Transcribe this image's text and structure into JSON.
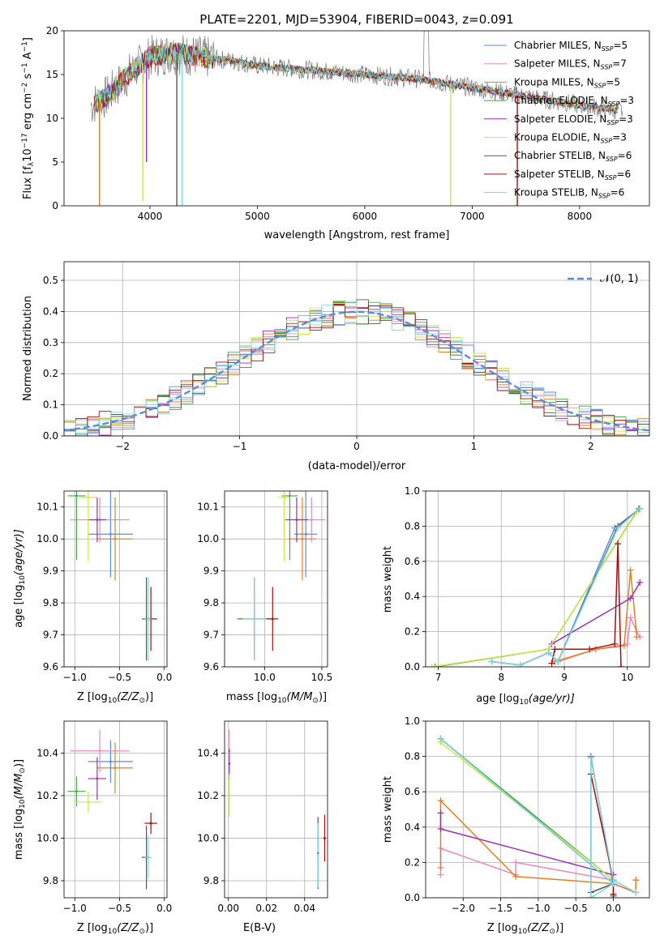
{
  "colors": {
    "chabrier_miles": "#5a8ce0",
    "salpeter_miles": "#e889c0",
    "kroupa_miles": "#e57f24",
    "chabrier_elodie": "#4aa34a",
    "salpeter_elodie": "#9c2fb5",
    "kroupa_elodie": "#c9e84a",
    "chabrier_stelib": "#555555",
    "salpeter_stelib": "#a01010",
    "kroupa_stelib": "#7fd8de",
    "gauss": "#5a8ce0"
  },
  "legend": [
    {
      "key": "chabrier_miles",
      "label": "Chabrier MILES, N",
      "sub": "SSP",
      "n": "=5"
    },
    {
      "key": "salpeter_miles",
      "label": "Salpeter MILES, N",
      "sub": "SSP",
      "n": "=7"
    },
    {
      "key": "kroupa_miles",
      "label": "Kroupa MILES, N",
      "sub": "SSP",
      "n": "=5"
    },
    {
      "key": "chabrier_elodie",
      "label": "Chabrier ELODIE, N",
      "sub": "SSP",
      "n": "=3"
    },
    {
      "key": "salpeter_elodie",
      "label": "Salpeter ELODIE, N",
      "sub": "SSP",
      "n": "=3"
    },
    {
      "key": "kroupa_elodie",
      "label": "Kroupa ELODIE, N",
      "sub": "SSP",
      "n": "=3"
    },
    {
      "key": "chabrier_stelib",
      "label": "Chabrier STELIB, N",
      "sub": "SSP",
      "n": "=6"
    },
    {
      "key": "salpeter_stelib",
      "label": "Salpeter STELIB, N",
      "sub": "SSP",
      "n": "=6"
    },
    {
      "key": "kroupa_stelib",
      "label": "Kroupa STELIB, N",
      "sub": "SSP",
      "n": "=6"
    }
  ],
  "chart_data": [
    {
      "id": "spectrum",
      "type": "line",
      "title": "PLATE=2201, MJD=53904, FIBERID=0043, z=0.091",
      "xlabel": "wavelength [Angstrom, rest frame]",
      "ylabel": "Flux [f",
      "ylabel_sub": "λ",
      "ylabel_rest": "10",
      "ylabel_sup": "−17",
      "ylabel_tail": " erg cm",
      "ylabel_sup2": "−2",
      "ylabel_tail2": " s",
      "ylabel_sup3": "−1",
      "ylabel_tail3": " A",
      "ylabel_sup4": "−1",
      "ylabel_end": "]",
      "xlim": [
        3200,
        8650
      ],
      "ylim": [
        0,
        20
      ],
      "xticks": [
        4000,
        5000,
        6000,
        7000,
        8000
      ],
      "yticks": [
        0,
        5,
        10,
        15,
        20
      ],
      "continuum": [
        [
          3450,
          11.5
        ],
        [
          3600,
          12.5
        ],
        [
          3800,
          15
        ],
        [
          4000,
          17
        ],
        [
          4200,
          17.5
        ],
        [
          4500,
          17
        ],
        [
          4800,
          16.5
        ],
        [
          5000,
          16
        ],
        [
          5500,
          15.5
        ],
        [
          6000,
          15
        ],
        [
          6500,
          14.5
        ],
        [
          7000,
          13.5
        ],
        [
          7500,
          12.5
        ],
        [
          8000,
          11.5
        ],
        [
          8400,
          10.8
        ]
      ],
      "dips": [
        [
          3530,
          0.0
        ],
        [
          3933,
          0.5
        ],
        [
          3968,
          5
        ],
        [
          4250,
          0
        ],
        [
          4300,
          0
        ],
        [
          6800,
          0
        ],
        [
          7420,
          0
        ]
      ]
    },
    {
      "id": "residuals",
      "type": "histogram",
      "xlabel": "(data-model)/error",
      "ylabel": "Normed distribution",
      "legend": "𝒩(0, 1)",
      "xlim": [
        -2.5,
        2.5
      ],
      "ylim": [
        0,
        0.56
      ],
      "xticks": [
        -2,
        -1,
        0,
        1,
        2
      ],
      "xtick_labels": [
        "−2",
        "−1",
        "0",
        "1",
        "2"
      ],
      "yticks": [
        0.0,
        0.1,
        0.2,
        0.3,
        0.4,
        0.5
      ],
      "ytick_labels": [
        "0.0",
        "0.1",
        "0.2",
        "0.3",
        "0.4",
        "0.5"
      ]
    },
    {
      "id": "age_vs_z",
      "type": "errorbar",
      "xlabel": "Z [log",
      "xlabel_sub": "10",
      "xlabel_rest": "(Z/Z",
      "xlabel_sub2": "⊙",
      "xlabel_end": ")]",
      "ylabel": "age  [log",
      "ylabel_sub": "10",
      "ylabel_rest": "(age/yr)]",
      "xlim": [
        -1.12,
        0.03
      ],
      "ylim": [
        9.6,
        10.15
      ],
      "xticks": [
        -1.0,
        -0.5,
        0.0
      ],
      "xtick_labels": [
        "−1.0",
        "−0.5",
        "0.0"
      ],
      "yticks": [
        9.6,
        9.7,
        9.8,
        9.9,
        10.0,
        10.1
      ],
      "ytick_labels": [
        "9.6",
        "9.7",
        "9.8",
        "9.9",
        "10.0",
        "10.1"
      ],
      "points": [
        {
          "key": "chabrier_miles",
          "x": -0.6,
          "y": 10.015,
          "xerr": 0.25,
          "yerr": 0.135
        },
        {
          "key": "salpeter_miles",
          "x": -0.72,
          "y": 10.06,
          "xerr": 0.33,
          "yerr": 0.07
        },
        {
          "key": "kroupa_miles",
          "x": -0.55,
          "y": 10.0,
          "xerr": 0.2,
          "yerr": 0.13
        },
        {
          "key": "chabrier_elodie",
          "x": -0.98,
          "y": 10.135,
          "xerr": 0.1,
          "yerr": 0.2
        },
        {
          "key": "salpeter_elodie",
          "x": -0.75,
          "y": 10.06,
          "xerr": 0.1,
          "yerr": 0.07
        },
        {
          "key": "kroupa_elodie",
          "x": -0.85,
          "y": 10.13,
          "xerr": 0.1,
          "yerr": 0.2
        },
        {
          "key": "chabrier_stelib",
          "x": -0.2,
          "y": 9.75,
          "xerr": 0.05,
          "yerr": 0.13
        },
        {
          "key": "salpeter_stelib",
          "x": -0.15,
          "y": 9.75,
          "xerr": 0.07,
          "yerr": 0.1
        },
        {
          "key": "kroupa_stelib",
          "x": -0.18,
          "y": 9.75,
          "xerr": 0.04,
          "yerr": 0.13
        }
      ]
    },
    {
      "id": "age_vs_mass",
      "type": "errorbar",
      "xlabel": "mass [log",
      "xlabel_sub": "10",
      "xlabel_rest": "(M/M",
      "xlabel_sub2": "⊙",
      "xlabel_end": ")]",
      "xlim": [
        9.65,
        10.55
      ],
      "ylim": [
        9.6,
        10.15
      ],
      "xticks": [
        10.0,
        10.5
      ],
      "xtick_labels": [
        "10.0",
        "10.5"
      ],
      "yticks": [
        9.6,
        9.7,
        9.8,
        9.9,
        10.0,
        10.1
      ],
      "ytick_labels": [
        "9.6",
        "9.7",
        "9.8",
        "9.9",
        "10.0",
        "10.1"
      ],
      "points": [
        {
          "key": "chabrier_miles",
          "x": 10.36,
          "y": 10.015,
          "xerr": 0.1,
          "yerr": 0.135
        },
        {
          "key": "salpeter_miles",
          "x": 10.41,
          "y": 10.06,
          "xerr": 0.12,
          "yerr": 0.07
        },
        {
          "key": "kroupa_miles",
          "x": 10.33,
          "y": 10.0,
          "xerr": 0.12,
          "yerr": 0.13
        },
        {
          "key": "chabrier_elodie",
          "x": 10.22,
          "y": 10.135,
          "xerr": 0.07,
          "yerr": 0.2
        },
        {
          "key": "salpeter_elodie",
          "x": 10.28,
          "y": 10.06,
          "xerr": 0.1,
          "yerr": 0.07
        },
        {
          "key": "kroupa_elodie",
          "x": 10.17,
          "y": 10.13,
          "xerr": 0.05,
          "yerr": 0.2
        },
        {
          "key": "chabrier_stelib",
          "x": 9.91,
          "y": 9.75,
          "xerr": 0.15,
          "yerr": 0.13
        },
        {
          "key": "salpeter_stelib",
          "x": 10.07,
          "y": 9.75,
          "xerr": 0.05,
          "yerr": 0.1
        },
        {
          "key": "kroupa_stelib",
          "x": 9.91,
          "y": 9.75,
          "xerr": 0.1,
          "yerr": 0.13
        }
      ]
    },
    {
      "id": "weight_vs_age",
      "type": "line",
      "xlabel": "age  [log",
      "xlabel_sub": "10",
      "xlabel_rest": "(age/yr)]",
      "ylabel": "mass weight",
      "xlim": [
        6.8,
        10.35
      ],
      "ylim": [
        0,
        1.0
      ],
      "xticks": [
        7,
        8,
        9,
        10
      ],
      "xtick_labels": [
        "7",
        "8",
        "9",
        "10"
      ],
      "yticks": [
        0.0,
        0.2,
        0.4,
        0.6,
        0.8,
        1.0
      ],
      "ytick_labels": [
        "0.0",
        "0.2",
        "0.4",
        "0.6",
        "0.8",
        "1.0"
      ],
      "series": [
        {
          "key": "chabrier_miles",
          "x": [
            7.85,
            8.3,
            8.75,
            8.9,
            9.8,
            10.2
          ],
          "y": [
            0.03,
            0.01,
            0.08,
            0.03,
            0.79,
            0.9
          ]
        },
        {
          "key": "salpeter_miles",
          "x": [
            8.9,
            9.5,
            10.0,
            10.05,
            10.15,
            10.2
          ],
          "y": [
            0.03,
            0.1,
            0.13,
            0.28,
            0.2,
            0.17
          ]
        },
        {
          "key": "kroupa_miles",
          "x": [
            8.85,
            9.5,
            9.95,
            10.05,
            10.15
          ],
          "y": [
            0.03,
            0.1,
            0.12,
            0.55,
            0.17
          ]
        },
        {
          "key": "chabrier_elodie",
          "x": [
            6.95,
            8.75,
            10.18
          ],
          "y": [
            0.0,
            0.1,
            0.9
          ]
        },
        {
          "key": "salpeter_elodie",
          "x": [
            8.8,
            10.05,
            10.2
          ],
          "y": [
            0.13,
            0.39,
            0.48
          ]
        },
        {
          "key": "kroupa_elodie",
          "x": [
            6.9,
            8.75,
            10.15
          ],
          "y": [
            0.0,
            0.1,
            0.88
          ]
        },
        {
          "key": "chabrier_stelib",
          "x": [
            7.85,
            8.3,
            8.75,
            8.9,
            9.85,
            10.2
          ],
          "y": [
            0.03,
            0.01,
            0.08,
            0.03,
            0.8,
            0.9
          ]
        },
        {
          "key": "salpeter_stelib",
          "x": [
            8.8,
            8.85,
            9.4,
            9.8,
            9.85,
            9.9
          ],
          "y": [
            0.02,
            0.1,
            0.1,
            0.13,
            0.7,
            0.0
          ]
        },
        {
          "key": "kroupa_stelib",
          "x": [
            7.85,
            8.3,
            8.75,
            8.9,
            9.85,
            10.2
          ],
          "y": [
            0.03,
            0.01,
            0.08,
            0.03,
            0.79,
            0.9
          ]
        }
      ]
    },
    {
      "id": "mass_vs_z",
      "type": "errorbar",
      "xlabel": "Z [log",
      "xlabel_sub": "10",
      "xlabel_rest": "(Z/Z",
      "xlabel_sub2": "⊙",
      "xlabel_end": ")]",
      "ylabel": "mass [log",
      "ylabel_sub": "10",
      "ylabel_rest": "(M/M",
      "ylabel_sub2": "⊙",
      "ylabel_end": ")]",
      "xlim": [
        -1.12,
        0.03
      ],
      "ylim": [
        9.72,
        10.55
      ],
      "xticks": [
        -1.0,
        -0.5,
        0.0
      ],
      "xtick_labels": [
        "−1.0",
        "−0.5",
        "0.0"
      ],
      "yticks": [
        9.8,
        10.0,
        10.2,
        10.4
      ],
      "ytick_labels": [
        "9.8",
        "10.0",
        "10.2",
        "10.4"
      ],
      "points": [
        {
          "key": "chabrier_miles",
          "x": -0.6,
          "y": 10.36,
          "xerr": 0.25,
          "yerr": 0.1
        },
        {
          "key": "salpeter_miles",
          "x": -0.72,
          "y": 10.41,
          "xerr": 0.33,
          "yerr": 0.1
        },
        {
          "key": "kroupa_miles",
          "x": -0.55,
          "y": 10.33,
          "xerr": 0.2,
          "yerr": 0.12
        },
        {
          "key": "chabrier_elodie",
          "x": -0.98,
          "y": 10.22,
          "xerr": 0.1,
          "yerr": 0.07
        },
        {
          "key": "salpeter_elodie",
          "x": -0.75,
          "y": 10.28,
          "xerr": 0.1,
          "yerr": 0.1
        },
        {
          "key": "kroupa_elodie",
          "x": -0.85,
          "y": 10.17,
          "xerr": 0.15,
          "yerr": 0.05
        },
        {
          "key": "chabrier_stelib",
          "x": -0.2,
          "y": 9.91,
          "xerr": 0.05,
          "yerr": 0.15
        },
        {
          "key": "salpeter_stelib",
          "x": -0.15,
          "y": 10.07,
          "xerr": 0.07,
          "yerr": 0.05
        },
        {
          "key": "kroupa_stelib",
          "x": -0.18,
          "y": 9.91,
          "xerr": 0.04,
          "yerr": 0.1
        }
      ]
    },
    {
      "id": "mass_vs_ebv",
      "type": "errorbar",
      "xlabel": "E(B-V)",
      "xlim": [
        -0.002,
        0.052
      ],
      "ylim": [
        9.72,
        10.55
      ],
      "xticks": [
        0.0,
        0.02,
        0.04
      ],
      "xtick_labels": [
        "0.00",
        "0.02",
        "0.04"
      ],
      "yticks": [
        9.8,
        10.0,
        10.2,
        10.4
      ],
      "ytick_labels": [
        "9.8",
        "10.0",
        "10.2",
        "10.4"
      ],
      "points": [
        {
          "key": "salpeter_miles",
          "x": 0.0005,
          "y": 10.41,
          "xerr": 0,
          "yerr": 0.1
        },
        {
          "key": "salpeter_elodie",
          "x": 0.0005,
          "y": 10.35,
          "xerr": 0,
          "yerr": 0.07
        },
        {
          "key": "kroupa_elodie",
          "x": 0.0005,
          "y": 10.2,
          "xerr": 0,
          "yerr": 0.1
        },
        {
          "key": "chabrier_stelib",
          "x": 0.047,
          "y": 9.93,
          "xerr": 0,
          "yerr": 0.17
        },
        {
          "key": "kroupa_stelib",
          "x": 0.047,
          "y": 9.92,
          "xerr": 0,
          "yerr": 0.15
        },
        {
          "key": "salpeter_stelib",
          "x": 0.0505,
          "y": 10.0,
          "xerr": 0,
          "yerr": 0.11
        }
      ]
    },
    {
      "id": "weight_vs_z",
      "type": "line",
      "xlabel": "Z [log",
      "xlabel_sub": "10",
      "xlabel_rest": "(Z/Z",
      "xlabel_sub2": "⊙",
      "xlabel_end": ")]",
      "ylabel": "mass weight",
      "xlim": [
        -2.5,
        0.48
      ],
      "ylim": [
        0,
        1.0
      ],
      "xticks": [
        -2.0,
        -1.5,
        -1.0,
        -0.5,
        0.0
      ],
      "xtick_labels": [
        "−2.0",
        "−1.5",
        "−1.0",
        "−0.5",
        "0.0"
      ],
      "yticks": [
        0.0,
        0.2,
        0.4,
        0.6,
        0.8,
        1.0
      ],
      "ytick_labels": [
        "0.0",
        "0.2",
        "0.4",
        "0.6",
        "0.8",
        "1.0"
      ],
      "series": [
        {
          "key": "chabrier_miles",
          "x": [
            -2.3,
            0.0,
            0.3,
            0.3
          ],
          "y": [
            0.9,
            0.08,
            0.03,
            0.1
          ]
        },
        {
          "key": "salpeter_miles",
          "x": [
            -2.3,
            -2.3,
            -1.3,
            -1.3,
            0.0,
            0.3
          ],
          "y": [
            0.13,
            0.28,
            0.13,
            0.2,
            0.1,
            0.03
          ]
        },
        {
          "key": "kroupa_miles",
          "x": [
            -2.3,
            -2.3,
            -1.3,
            0.0,
            0.3,
            0.3
          ],
          "y": [
            0.17,
            0.55,
            0.12,
            0.08,
            0.03,
            0.1
          ]
        },
        {
          "key": "chabrier_elodie",
          "x": [
            -2.3,
            0.0
          ],
          "y": [
            0.9,
            0.1
          ]
        },
        {
          "key": "salpeter_elodie",
          "x": [
            -2.3,
            -2.3,
            0.0
          ],
          "y": [
            0.48,
            0.39,
            0.13
          ]
        },
        {
          "key": "kroupa_elodie",
          "x": [
            -2.3,
            0.0
          ],
          "y": [
            0.88,
            0.1
          ]
        },
        {
          "key": "chabrier_stelib",
          "x": [
            -2.3,
            0.0,
            -0.3,
            -0.3,
            0.0,
            0.0
          ],
          "y": [
            0.9,
            0.08,
            0.03,
            0.8,
            0.08,
            0.01
          ]
        },
        {
          "key": "salpeter_stelib",
          "x": [
            -0.3,
            -0.3,
            0.0,
            0.0
          ],
          "y": [
            0.0,
            0.7,
            0.1,
            0.02
          ]
        },
        {
          "key": "kroupa_stelib",
          "x": [
            -2.3,
            0.0,
            -0.3,
            -0.3,
            0.0,
            0.3
          ],
          "y": [
            0.9,
            0.08,
            0.0,
            0.79,
            0.1,
            0.03
          ]
        }
      ]
    }
  ]
}
